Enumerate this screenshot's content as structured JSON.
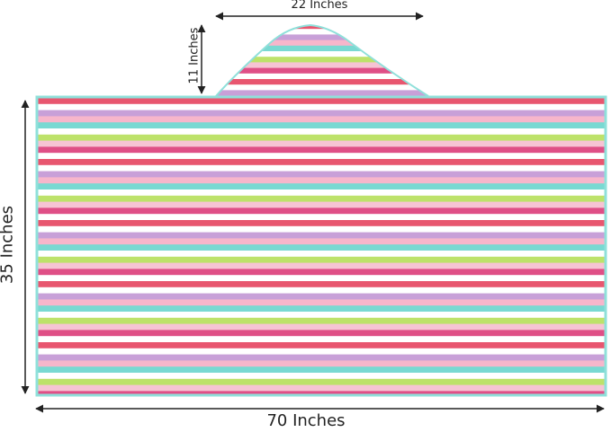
{
  "dimensions": {
    "hood_width": "22 Inches",
    "hood_height": "11 Inches",
    "towel_height": "35 Inches",
    "towel_width": "70 Inches"
  },
  "colors": {
    "stripes": [
      "#e8566f",
      "#ffffff",
      "#c8a0d8",
      "#f7b6cb",
      "#79d9d2",
      "#ffffff",
      "#bde26a",
      "#f6c4d4",
      "#df4f86",
      "#ffffff"
    ],
    "trim": "#8fe0da",
    "arrow": "#222222"
  }
}
